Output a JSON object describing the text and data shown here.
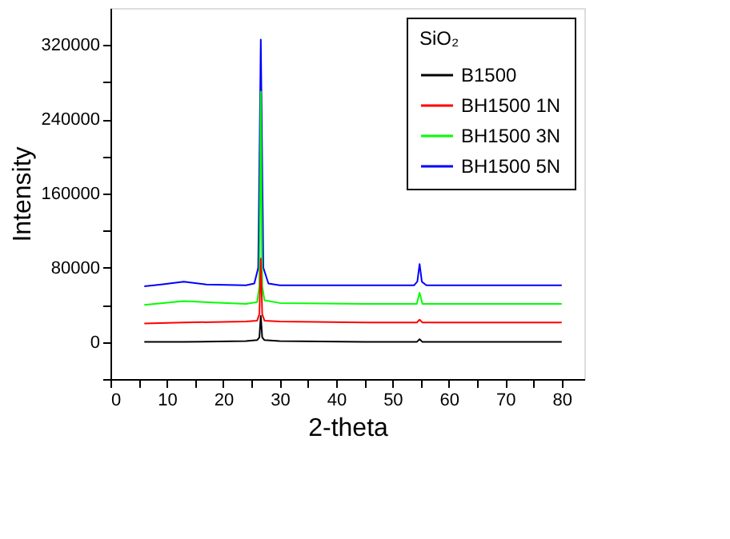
{
  "chart_data": {
    "type": "line",
    "xlabel": "2-theta",
    "ylabel": "Intensity",
    "legend_title": "SiO₂",
    "legend": "top right",
    "grid": false,
    "marker": "none",
    "line_style": "solid",
    "xlim": [
      0,
      84
    ],
    "xticks": [
      0,
      {
        "value": 5,
        "label": null
      },
      10,
      {
        "value": 15,
        "label": null
      },
      20,
      {
        "value": 25,
        "label": null
      },
      30,
      {
        "value": 35,
        "label": null
      },
      40,
      {
        "value": 45,
        "label": null
      },
      50,
      {
        "value": 55,
        "label": null
      },
      60,
      {
        "value": 65,
        "label": null
      },
      70,
      {
        "value": 75,
        "label": null
      },
      80
    ],
    "ylim": [
      -40000,
      360000
    ],
    "yticks": [
      {
        "value": -40000,
        "label": null
      },
      0,
      {
        "value": 40000,
        "label": null
      },
      80000,
      {
        "value": 120000,
        "label": null
      },
      160000,
      {
        "value": 200000,
        "label": null
      },
      240000,
      {
        "value": 280000,
        "label": null
      },
      320000
    ],
    "series": [
      {
        "name": "B1500",
        "color": "#000000",
        "x": [
          6,
          13,
          24,
          26.0,
          26.4,
          26.65,
          26.9,
          27.3,
          30,
          45,
          54.3,
          54.8,
          55.3,
          65,
          80
        ],
        "values": [
          0,
          0,
          1000,
          2000,
          5000,
          28000,
          5000,
          2000,
          1000,
          0,
          0,
          3000,
          0,
          0,
          0
        ]
      },
      {
        "name": "BH1500 1N",
        "color": "#ff0000",
        "x": [
          6,
          13,
          24,
          26.0,
          26.4,
          26.65,
          26.9,
          27.3,
          30,
          45,
          54.3,
          54.8,
          55.3,
          65,
          80
        ],
        "values": [
          20000,
          21000,
          22000,
          23000,
          30000,
          90000,
          30000,
          23000,
          22000,
          21000,
          21000,
          24000,
          21000,
          21000,
          21000
        ]
      },
      {
        "name": "BH1500 3N",
        "color": "#00ff00",
        "x": [
          6,
          13,
          24,
          26.0,
          26.4,
          26.65,
          26.9,
          27.3,
          30,
          45,
          54.3,
          54.8,
          55.3,
          65,
          80
        ],
        "values": [
          40000,
          44000,
          41000,
          43000,
          60000,
          270000,
          60000,
          45000,
          42000,
          41000,
          41000,
          53000,
          41000,
          41000,
          41000
        ]
      },
      {
        "name": "BH1500 5N",
        "color": "#0000ff",
        "x": [
          6,
          9,
          13,
          17,
          24,
          25.5,
          26.2,
          26.65,
          27.1,
          28,
          30,
          45,
          53.8,
          54.4,
          54.8,
          55.2,
          56,
          65,
          80
        ],
        "values": [
          60000,
          62000,
          65000,
          62000,
          61000,
          63000,
          80000,
          326000,
          80000,
          63000,
          61000,
          61000,
          61000,
          65000,
          84000,
          65000,
          61000,
          61000,
          61000
        ]
      }
    ]
  }
}
